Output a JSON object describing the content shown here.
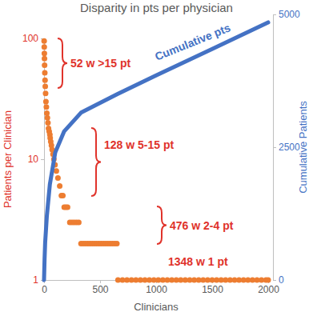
{
  "chart_data": {
    "type": "scatter",
    "title": "Disparity in pts per physician",
    "xlabel": "Clinicians",
    "ylabel": "Patients per Clinician",
    "y2label": "Cumulative Patients",
    "log": "y",
    "xlim": [
      0,
      2000
    ],
    "xticks": [
      0,
      500,
      1000,
      1500,
      2000
    ],
    "ylim": [
      1,
      100
    ],
    "yticks": [
      1,
      10,
      100
    ],
    "y2lim": [
      0,
      5000
    ],
    "y2ticks": [
      0,
      2500,
      5000
    ],
    "annotations": [
      "52 w >15 pt",
      "128 w 5-15 pt",
      "476 w 2-4 pt",
      "1348 w 1 pt"
    ],
    "series": [
      {
        "type": "scatter",
        "marker": "circle",
        "color": "#ed7d31",
        "x": [
          1,
          2,
          3,
          4,
          5,
          7,
          9,
          11,
          14,
          17,
          21,
          25,
          30,
          35,
          40,
          46,
          52,
          55,
          60,
          66,
          72,
          80,
          88,
          98,
          110,
          124,
          140,
          155,
          168,
          180,
          195,
          210,
          230,
          250,
          270,
          290,
          310,
          330,
          350,
          370,
          390,
          410,
          430,
          450,
          470,
          490,
          510,
          530,
          550,
          570,
          590,
          610,
          630,
          650,
          660,
          700,
          740,
          780,
          820,
          860,
          900,
          940,
          980,
          1020,
          1060,
          1100,
          1140,
          1180,
          1220,
          1260,
          1300,
          1340,
          1380,
          1420,
          1460,
          1500,
          1540,
          1580,
          1620,
          1660,
          1700,
          1740,
          1780,
          1820,
          1860,
          1900,
          1940,
          1980,
          2000
        ],
        "values": [
          95,
          85,
          75,
          68,
          60,
          52,
          45,
          40,
          35,
          30,
          27,
          24,
          22,
          20,
          18,
          17,
          16,
          15,
          14,
          13,
          12,
          11,
          10,
          9,
          8,
          7,
          6,
          5,
          5,
          4,
          4,
          4,
          3,
          3,
          3,
          3,
          3,
          2,
          2,
          2,
          2,
          2,
          2,
          2,
          2,
          2,
          2,
          2,
          2,
          2,
          2,
          2,
          2,
          2,
          1,
          1,
          1,
          1,
          1,
          1,
          1,
          1,
          1,
          1,
          1,
          1,
          1,
          1,
          1,
          1,
          1,
          1,
          1,
          1,
          1,
          1,
          1,
          1,
          1,
          1,
          1,
          1,
          1,
          1,
          1,
          1,
          1,
          1,
          1
        ]
      },
      {
        "name": "Cumulative pts",
        "type": "line",
        "axis": "y2",
        "color": "#4472c4",
        "x": [
          0,
          5,
          10,
          25,
          52,
          100,
          180,
          330,
          656,
          1000,
          1500,
          2000
        ],
        "values": [
          0,
          400,
          700,
          1200,
          1800,
          2400,
          2800,
          3150,
          3500,
          3850,
          4350,
          4850
        ]
      }
    ]
  }
}
